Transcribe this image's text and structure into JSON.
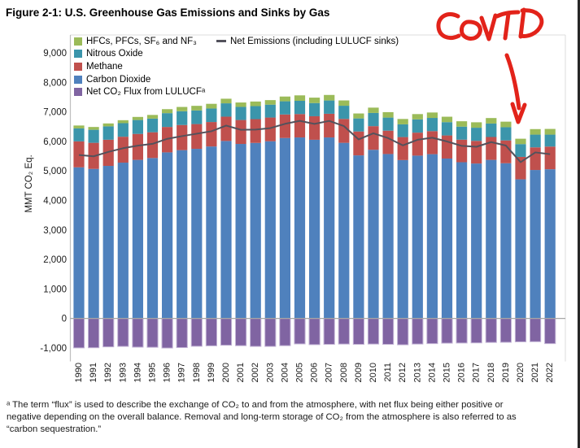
{
  "figure": {
    "title": "Figure 2-1:  U.S. Greenhouse Gas Emissions and Sinks by Gas"
  },
  "y_axis": {
    "title": "MMT CO₂ Eq.",
    "ticks": [
      "9,000",
      "8,000",
      "7,000",
      "6,000",
      "5,000",
      "4,000",
      "3,000",
      "2,000",
      "1,000",
      "0",
      "-1,000"
    ],
    "tick_values": [
      9000,
      8000,
      7000,
      6000,
      5000,
      4000,
      3000,
      2000,
      1000,
      0,
      -1000
    ]
  },
  "legend": {
    "items": [
      {
        "label": "HFCs, PFCs, SF₆ and NF₃",
        "color": "#9BBB59"
      },
      {
        "label": "Nitrous Oxide",
        "color": "#3B95AB"
      },
      {
        "label": "Methane",
        "color": "#C0504D"
      },
      {
        "label": "Carbon Dioxide",
        "color": "#4F81BD"
      },
      {
        "label": "Net CO₂ Flux from LULUCFᵃ",
        "color": "#8064A2"
      }
    ],
    "line_item": {
      "label": "Net Emissions (including LULUCF sinks)",
      "color": "#53525C"
    }
  },
  "annotation": {
    "text": "COVID",
    "color": "#E2231A",
    "target_year": "2020"
  },
  "footnote": {
    "lines": [
      "ᵃ The term “flux” is used to describe the exchange of CO₂ to and from the atmosphere, with net flux being either positive or",
      "negative depending on the overall balance. Removal and long-term storage of CO₂ from the atmosphere is also referred to as",
      "“carbon sequestration.”"
    ]
  },
  "colors": {
    "co2_blue": "#4F81BD",
    "ch4_red": "#C0504D",
    "n2o_teal": "#3B95AB",
    "fgas_green": "#9BBB59",
    "lulucf_purple": "#8064A2",
    "lulucf_edge": "#C3B4D6",
    "net_line_gray": "#53525C",
    "zero_line_gray": "#A6A6A6",
    "axis_gray": "#BFBFBF",
    "plot_border_gray": "#DCDCDC",
    "annotation_red": "#E2231A"
  },
  "chart_data": {
    "type": "bar",
    "stacked": true,
    "title": "Figure 2-1: U.S. Greenhouse Gas Emissions and Sinks by Gas",
    "xlabel": "",
    "ylabel": "MMT CO₂ Eq.",
    "ylim": [
      -1000,
      9000
    ],
    "grid": false,
    "legend_position": "top-left-inside",
    "categories": [
      "1990",
      "1991",
      "1992",
      "1993",
      "1994",
      "1995",
      "1996",
      "1997",
      "1998",
      "1999",
      "2000",
      "2001",
      "2002",
      "2003",
      "2004",
      "2005",
      "2006",
      "2007",
      "2008",
      "2009",
      "2010",
      "2011",
      "2012",
      "2013",
      "2014",
      "2015",
      "2016",
      "2017",
      "2018",
      "2019",
      "2020",
      "2021",
      "2022"
    ],
    "series": [
      {
        "key": "co2",
        "name": "Carbon Dioxide",
        "color": "#4F81BD",
        "values": [
          5122,
          5069,
          5171,
          5281,
          5375,
          5438,
          5629,
          5705,
          5749,
          5829,
          6016,
          5915,
          5950,
          6006,
          6117,
          6135,
          6056,
          6135,
          5953,
          5527,
          5717,
          5573,
          5368,
          5519,
          5568,
          5420,
          5295,
          5251,
          5375,
          5261,
          4715,
          5032,
          5057
        ]
      },
      {
        "key": "ch4",
        "name": "Methane",
        "color": "#C0504D",
        "values": [
          880,
          884,
          887,
          879,
          880,
          873,
          862,
          852,
          840,
          829,
          824,
          812,
          806,
          804,
          797,
          793,
          798,
          803,
          811,
          811,
          801,
          792,
          780,
          779,
          781,
          783,
          765,
          768,
          775,
          773,
          761,
          767,
          769
        ]
      },
      {
        "key": "n2o",
        "name": "Nitrous Oxide",
        "color": "#3B95AB",
        "values": [
          439,
          442,
          453,
          459,
          471,
          462,
          468,
          467,
          461,
          458,
          452,
          444,
          441,
          437,
          447,
          449,
          447,
          450,
          446,
          442,
          448,
          444,
          432,
          449,
          448,
          451,
          442,
          446,
          457,
          448,
          434,
          432,
          405
        ]
      },
      {
        "key": "fgas",
        "name": "HFCs, PFCs, SF₆ and NF₃",
        "color": "#9BBB59",
        "values": [
          99,
          95,
          99,
          101,
          105,
          125,
          135,
          145,
          157,
          159,
          156,
          149,
          156,
          154,
          161,
          185,
          184,
          188,
          180,
          168,
          180,
          184,
          182,
          180,
          184,
          184,
          182,
          184,
          186,
          188,
          182,
          187,
          193
        ]
      },
      {
        "key": "lulucf",
        "name": "Net CO₂ Flux from LULUCFᵃ",
        "color": "#8064A2",
        "values": [
          -1000,
          -995,
          -965,
          -950,
          -975,
          -980,
          -1005,
          -990,
          -945,
          -930,
          -910,
          -925,
          -950,
          -950,
          -925,
          -865,
          -890,
          -880,
          -870,
          -880,
          -870,
          -880,
          -895,
          -870,
          -855,
          -840,
          -835,
          -830,
          -815,
          -810,
          -795,
          -790,
          -855
        ]
      }
    ],
    "line_series": {
      "name": "Net Emissions (including LULUCF sinks)",
      "color": "#53525C",
      "values": [
        5540,
        5495,
        5645,
        5770,
        5856,
        5918,
        6089,
        6179,
        6262,
        6345,
        6538,
        6395,
        6403,
        6451,
        6597,
        6697,
        6595,
        6696,
        6520,
        6068,
        6276,
        6113,
        5867,
        6057,
        6126,
        5998,
        5849,
        5819,
        5978,
        5860,
        5297,
        5628,
        5569
      ]
    }
  }
}
